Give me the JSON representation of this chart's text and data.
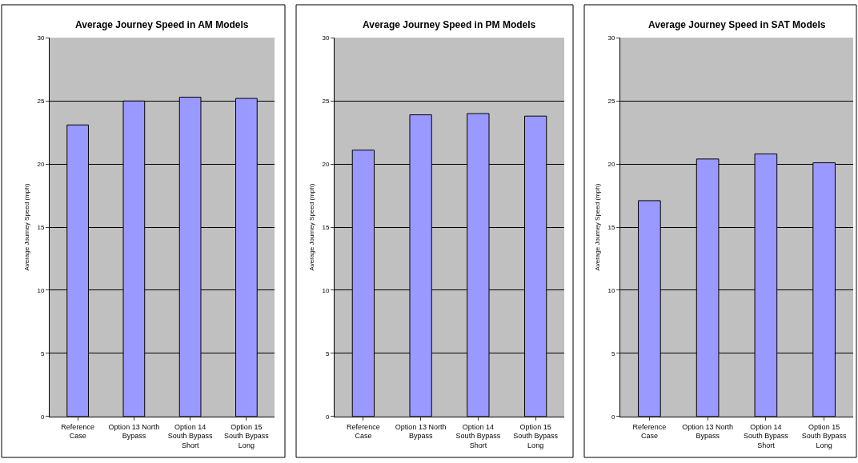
{
  "chart_data": [
    {
      "type": "bar",
      "title": "Average Journey Speed in AM Models",
      "ylabel": "Average Journey Speed (mph)",
      "categories": [
        "Reference\nCase",
        "Option 13 North\nBypass",
        "Option 14\nSouth Bypass\nShort",
        "Option 15\nSouth Bypass\nLong"
      ],
      "values": [
        23.1,
        25.0,
        25.3,
        25.2
      ],
      "color": "#9999ff",
      "ylim": [
        0,
        30
      ],
      "yticks": [
        0,
        5,
        10,
        15,
        20,
        25,
        30
      ],
      "grid": "y"
    },
    {
      "type": "bar",
      "title": "Average Journey Speed in PM Models",
      "ylabel": "Average Journey Speed (mph)",
      "categories": [
        "Reference\nCase",
        "Option 13 North\nBypass",
        "Option 14\nSouth Bypass\nShort",
        "Option 15\nSouth Bypass\nLong"
      ],
      "values": [
        21.1,
        23.9,
        24.0,
        23.8
      ],
      "color": "#9999ff",
      "ylim": [
        0,
        30
      ],
      "yticks": [
        0,
        5,
        10,
        15,
        20,
        25,
        30
      ],
      "grid": "y"
    },
    {
      "type": "bar",
      "title": "Average Journey Speed in SAT Models",
      "ylabel": "Average Journey Speed (mph)",
      "categories": [
        "Reference\nCase",
        "Option 13 North\nBypass",
        "Option 14\nSouth Bypass\nShort",
        "Option 15\nSouth Bypass\nLong"
      ],
      "values": [
        17.1,
        20.4,
        20.8,
        20.1
      ],
      "color": "#9999ff",
      "ylim": [
        0,
        30
      ],
      "yticks": [
        0,
        5,
        10,
        15,
        20,
        25,
        30
      ],
      "grid": "y"
    }
  ]
}
